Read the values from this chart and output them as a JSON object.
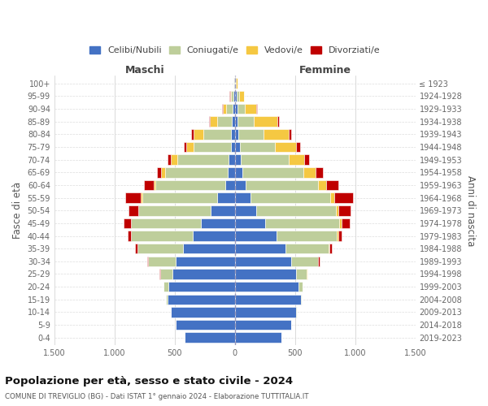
{
  "age_groups": [
    "0-4",
    "5-9",
    "10-14",
    "15-19",
    "20-24",
    "25-29",
    "30-34",
    "35-39",
    "40-44",
    "45-49",
    "50-54",
    "55-59",
    "60-64",
    "65-69",
    "70-74",
    "75-79",
    "80-84",
    "85-89",
    "90-94",
    "95-99",
    "100+"
  ],
  "birth_years": [
    "2019-2023",
    "2014-2018",
    "2009-2013",
    "2004-2008",
    "1999-2003",
    "1994-1998",
    "1989-1993",
    "1984-1988",
    "1979-1983",
    "1974-1978",
    "1969-1973",
    "1964-1968",
    "1959-1963",
    "1954-1958",
    "1949-1953",
    "1944-1948",
    "1939-1943",
    "1934-1938",
    "1929-1933",
    "1924-1928",
    "≤ 1923"
  ],
  "male": {
    "celibe": [
      420,
      490,
      530,
      560,
      550,
      520,
      490,
      430,
      350,
      280,
      200,
      150,
      80,
      60,
      50,
      35,
      30,
      25,
      20,
      10,
      5
    ],
    "coniugato": [
      0,
      2,
      5,
      10,
      40,
      100,
      230,
      380,
      510,
      580,
      600,
      620,
      580,
      520,
      430,
      310,
      230,
      120,
      50,
      20,
      5
    ],
    "vedovo": [
      0,
      0,
      0,
      0,
      1,
      1,
      1,
      2,
      2,
      5,
      5,
      10,
      15,
      30,
      50,
      60,
      80,
      60,
      30,
      10,
      2
    ],
    "divorziato": [
      0,
      0,
      0,
      0,
      2,
      5,
      10,
      20,
      30,
      60,
      80,
      130,
      80,
      40,
      30,
      20,
      20,
      10,
      5,
      2,
      0
    ]
  },
  "female": {
    "nubile": [
      390,
      470,
      510,
      550,
      530,
      510,
      470,
      420,
      350,
      250,
      180,
      130,
      90,
      60,
      50,
      40,
      30,
      25,
      20,
      15,
      5
    ],
    "coniugata": [
      0,
      1,
      3,
      8,
      30,
      90,
      220,
      360,
      500,
      620,
      660,
      660,
      600,
      510,
      400,
      290,
      210,
      130,
      60,
      20,
      5
    ],
    "vedova": [
      0,
      0,
      0,
      0,
      0,
      1,
      3,
      5,
      8,
      15,
      20,
      40,
      70,
      100,
      130,
      180,
      210,
      200,
      100,
      40,
      10
    ],
    "divorziata": [
      0,
      0,
      0,
      0,
      2,
      5,
      10,
      20,
      30,
      70,
      100,
      150,
      100,
      60,
      40,
      30,
      20,
      10,
      5,
      2,
      0
    ]
  },
  "colors": {
    "celibe": "#4472C4",
    "coniugato": "#BECE9B",
    "vedovo": "#F5C842",
    "divorziato": "#C00000"
  },
  "xlim": 1500,
  "xticks": [
    -1500,
    -1000,
    -500,
    0,
    500,
    1000,
    1500
  ],
  "xticklabels": [
    "1.500",
    "1.000",
    "500",
    "0",
    "500",
    "1.000",
    "1.500"
  ],
  "title": "Popolazione per età, sesso e stato civile - 2024",
  "subtitle": "COMUNE DI TREVIGLIO (BG) - Dati ISTAT 1° gennaio 2024 - Elaborazione TUTTITALIA.IT",
  "ylabel": "Fasce di età",
  "right_ylabel": "Anni di nascita",
  "maschi_label": "Maschi",
  "femmine_label": "Femmine",
  "legend_labels": [
    "Celibi/Nubili",
    "Coniugati/e",
    "Vedovi/e",
    "Divorziati/e"
  ]
}
